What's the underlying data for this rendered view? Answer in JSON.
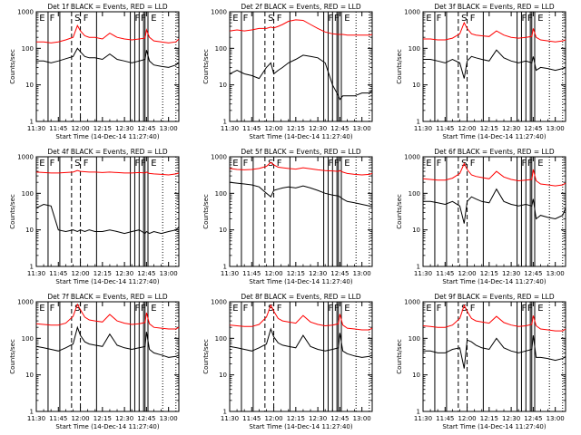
{
  "common": {
    "x_ticks": [
      "11:30",
      "11:45",
      "12:00",
      "12:15",
      "12:30",
      "12:45",
      "13:00"
    ],
    "x_tick_minutes": [
      0,
      15,
      30,
      45,
      60,
      75,
      90
    ],
    "xlim_minutes": [
      0,
      97
    ],
    "y_ticks": [
      "1",
      "10",
      "100",
      "1000"
    ],
    "y_tick_values": [
      1,
      10,
      100,
      1000
    ],
    "ylim": [
      1,
      1000
    ],
    "y_scale": "log",
    "ylabel": "Counts/sec",
    "xlabel": "Start Time (14-Dec-14 11:27:40)",
    "colors": {
      "events": "#000000",
      "lld": "#ff0000",
      "axes": "#000000"
    }
  },
  "chart_data": [
    {
      "type": "line",
      "title": "Det 1f BLACK = Events, RED = LLD",
      "x_minutes": [
        0,
        5,
        10,
        15,
        20,
        25,
        28,
        30,
        33,
        36,
        40,
        45,
        50,
        55,
        60,
        65,
        70,
        74,
        75,
        77,
        80,
        85,
        90,
        95,
        97
      ],
      "series": [
        {
          "name": "Events",
          "color": "#000000",
          "values": [
            45,
            45,
            40,
            45,
            52,
            60,
            100,
            80,
            60,
            55,
            55,
            50,
            70,
            50,
            45,
            40,
            45,
            50,
            90,
            45,
            35,
            32,
            30,
            35,
            40
          ]
        },
        {
          "name": "LLD",
          "color": "#ff0000",
          "values": [
            150,
            150,
            140,
            150,
            170,
            200,
            420,
            300,
            220,
            200,
            200,
            180,
            260,
            200,
            180,
            170,
            180,
            190,
            320,
            200,
            160,
            150,
            140,
            150,
            180
          ]
        }
      ]
    },
    {
      "type": "line",
      "title": "Det 2f BLACK = Events, RED = LLD",
      "x_minutes": [
        0,
        5,
        10,
        15,
        20,
        25,
        28,
        30,
        33,
        36,
        40,
        45,
        50,
        55,
        60,
        65,
        70,
        74,
        75,
        77,
        80,
        85,
        90,
        95,
        97
      ],
      "series": [
        {
          "name": "Events",
          "color": "#000000",
          "values": [
            20,
            25,
            20,
            18,
            15,
            30,
            40,
            20,
            25,
            30,
            40,
            50,
            65,
            60,
            55,
            40,
            10,
            5,
            4,
            5,
            5,
            5,
            6,
            6,
            7
          ]
        },
        {
          "name": "LLD",
          "color": "#ff0000",
          "values": [
            300,
            320,
            300,
            320,
            350,
            350,
            380,
            360,
            400,
            450,
            550,
            600,
            580,
            450,
            350,
            280,
            250,
            240,
            240,
            240,
            230,
            230,
            230,
            230,
            240
          ]
        }
      ]
    },
    {
      "type": "line",
      "title": "Det 3f BLACK = Events, RED = LLD",
      "x_minutes": [
        0,
        5,
        10,
        15,
        20,
        25,
        28,
        30,
        33,
        36,
        40,
        45,
        50,
        55,
        60,
        65,
        70,
        74,
        75,
        77,
        80,
        85,
        90,
        95,
        97
      ],
      "series": [
        {
          "name": "Events",
          "color": "#000000",
          "values": [
            50,
            50,
            45,
            40,
            50,
            40,
            15,
            45,
            60,
            55,
            50,
            45,
            90,
            55,
            45,
            40,
            45,
            40,
            60,
            25,
            30,
            28,
            25,
            28,
            30
          ]
        },
        {
          "name": "LLD",
          "color": "#ff0000",
          "values": [
            180,
            180,
            170,
            170,
            190,
            250,
            500,
            350,
            250,
            230,
            220,
            210,
            300,
            230,
            200,
            190,
            200,
            210,
            350,
            200,
            170,
            160,
            150,
            160,
            170
          ]
        }
      ]
    },
    {
      "type": "line",
      "title": "Det 4f BLACK = Events, RED = LLD",
      "x_minutes": [
        0,
        5,
        10,
        15,
        20,
        25,
        28,
        30,
        33,
        36,
        40,
        45,
        50,
        55,
        60,
        65,
        70,
        74,
        75,
        77,
        80,
        85,
        90,
        95,
        97
      ],
      "series": [
        {
          "name": "Events",
          "color": "#000000",
          "values": [
            40,
            50,
            45,
            10,
            9,
            10,
            9,
            10,
            9,
            10,
            9,
            9,
            10,
            9,
            8,
            9,
            10,
            8,
            9,
            8,
            9,
            8,
            9,
            10,
            12
          ]
        },
        {
          "name": "LLD",
          "color": "#ff0000",
          "values": [
            380,
            370,
            360,
            360,
            370,
            380,
            420,
            400,
            390,
            380,
            380,
            370,
            380,
            370,
            360,
            360,
            370,
            360,
            380,
            350,
            340,
            330,
            320,
            340,
            360
          ]
        }
      ]
    },
    {
      "type": "line",
      "title": "Det 5f BLACK = Events, RED = LLD",
      "x_minutes": [
        0,
        5,
        10,
        15,
        20,
        25,
        28,
        30,
        33,
        36,
        40,
        45,
        50,
        55,
        60,
        65,
        70,
        74,
        75,
        77,
        80,
        85,
        90,
        95,
        97
      ],
      "series": [
        {
          "name": "Events",
          "color": "#000000",
          "values": [
            200,
            190,
            180,
            170,
            150,
            100,
            80,
            120,
            130,
            140,
            150,
            140,
            160,
            140,
            120,
            100,
            90,
            85,
            80,
            70,
            60,
            55,
            50,
            45,
            45
          ]
        },
        {
          "name": "LLD",
          "color": "#ff0000",
          "values": [
            480,
            450,
            440,
            450,
            480,
            550,
            700,
            600,
            520,
            500,
            480,
            460,
            500,
            470,
            440,
            420,
            410,
            400,
            420,
            380,
            350,
            330,
            320,
            330,
            350
          ]
        }
      ]
    },
    {
      "type": "line",
      "title": "Det 6f BLACK = Events, RED = LLD",
      "x_minutes": [
        0,
        5,
        10,
        15,
        20,
        25,
        28,
        30,
        33,
        36,
        40,
        45,
        50,
        55,
        60,
        65,
        70,
        74,
        75,
        77,
        80,
        85,
        90,
        95,
        97
      ],
      "series": [
        {
          "name": "Events",
          "color": "#000000",
          "values": [
            60,
            60,
            55,
            50,
            60,
            45,
            15,
            60,
            80,
            70,
            60,
            55,
            130,
            60,
            50,
            45,
            50,
            45,
            70,
            20,
            25,
            22,
            20,
            25,
            40
          ]
        },
        {
          "name": "LLD",
          "color": "#ff0000",
          "values": [
            250,
            240,
            230,
            230,
            260,
            350,
            650,
            450,
            320,
            290,
            270,
            250,
            400,
            280,
            240,
            220,
            230,
            240,
            450,
            220,
            180,
            170,
            160,
            170,
            190
          ]
        }
      ]
    },
    {
      "type": "line",
      "title": "Det 7f BLACK = Events, RED = LLD",
      "x_minutes": [
        0,
        5,
        10,
        15,
        20,
        25,
        28,
        30,
        33,
        36,
        40,
        45,
        50,
        55,
        60,
        65,
        70,
        74,
        75,
        77,
        80,
        85,
        90,
        95,
        97
      ],
      "series": [
        {
          "name": "Events",
          "color": "#000000",
          "values": [
            60,
            55,
            50,
            45,
            55,
            70,
            200,
            120,
            80,
            70,
            65,
            60,
            130,
            65,
            55,
            50,
            55,
            60,
            150,
            50,
            40,
            35,
            30,
            32,
            35
          ]
        },
        {
          "name": "LLD",
          "color": "#ff0000",
          "values": [
            250,
            240,
            230,
            230,
            260,
            400,
            850,
            600,
            380,
            320,
            300,
            280,
            450,
            300,
            260,
            240,
            250,
            270,
            500,
            250,
            200,
            190,
            180,
            180,
            200
          ]
        }
      ]
    },
    {
      "type": "line",
      "title": "Det 8f BLACK = Events, RED = LLD",
      "x_minutes": [
        0,
        5,
        10,
        15,
        20,
        25,
        28,
        30,
        33,
        36,
        40,
        45,
        50,
        55,
        60,
        65,
        70,
        74,
        75,
        77,
        80,
        85,
        90,
        95,
        97
      ],
      "series": [
        {
          "name": "Events",
          "color": "#000000",
          "values": [
            60,
            55,
            50,
            45,
            55,
            70,
            180,
            110,
            75,
            65,
            60,
            55,
            120,
            60,
            50,
            45,
            50,
            55,
            140,
            45,
            38,
            33,
            30,
            32,
            35
          ]
        },
        {
          "name": "LLD",
          "color": "#ff0000",
          "values": [
            230,
            220,
            210,
            210,
            240,
            380,
            800,
            550,
            350,
            300,
            280,
            260,
            420,
            280,
            240,
            220,
            230,
            250,
            460,
            230,
            190,
            180,
            170,
            170,
            190
          ]
        }
      ]
    },
    {
      "type": "line",
      "title": "Det 9f BLACK = Events, RED = LLD",
      "x_minutes": [
        0,
        5,
        10,
        15,
        20,
        25,
        28,
        30,
        33,
        36,
        40,
        45,
        50,
        55,
        60,
        65,
        70,
        74,
        75,
        77,
        80,
        85,
        90,
        95,
        97
      ],
      "series": [
        {
          "name": "Events",
          "color": "#000000",
          "values": [
            45,
            45,
            40,
            40,
            50,
            55,
            15,
            90,
            80,
            65,
            55,
            50,
            100,
            55,
            45,
            40,
            45,
            50,
            120,
            30,
            30,
            28,
            25,
            28,
            32
          ]
        },
        {
          "name": "LLD",
          "color": "#ff0000",
          "values": [
            220,
            210,
            200,
            200,
            230,
            350,
            800,
            550,
            350,
            300,
            280,
            260,
            400,
            270,
            230,
            210,
            220,
            240,
            420,
            220,
            180,
            170,
            160,
            160,
            180
          ]
        }
      ]
    }
  ],
  "markers": {
    "solid_x_minutes": [
      8,
      16,
      41,
      64,
      67,
      70,
      73,
      74,
      76
    ],
    "dashed_x_minutes": [
      24,
      30
    ],
    "dotted_x_minutes": [
      86,
      95
    ],
    "letters": [
      {
        "text": "E",
        "x_minutes": 2
      },
      {
        "text": "F",
        "x_minutes": 9
      },
      {
        "text": "S",
        "x_minutes": 26
      },
      {
        "text": "F",
        "x_minutes": 32
      },
      {
        "text": "F",
        "x_minutes": 67
      },
      {
        "text": "F",
        "x_minutes": 71
      },
      {
        "text": "E",
        "x_minutes": 78
      }
    ]
  }
}
